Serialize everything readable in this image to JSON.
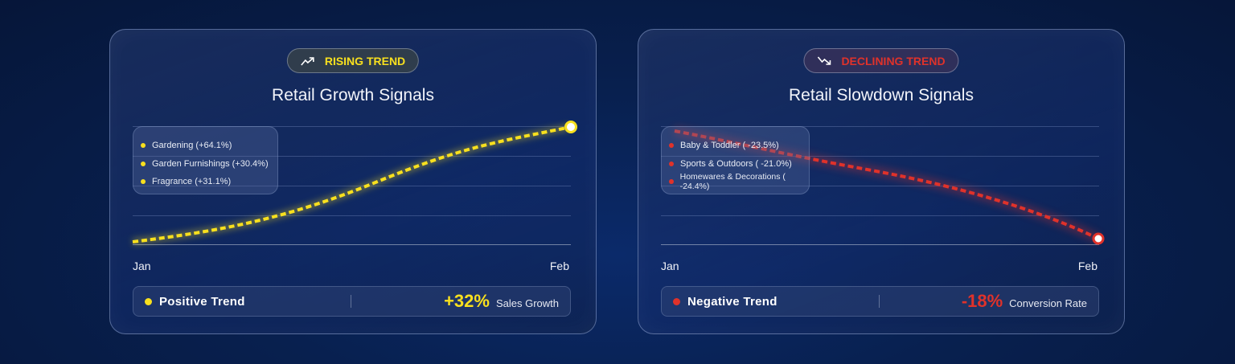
{
  "colors": {
    "rising": "#f8e01e",
    "declining": "#e0322a"
  },
  "cards": [
    {
      "badge": {
        "icon": "trending-up-icon",
        "label": "RISING TREND"
      },
      "title": "Retail Growth Signals",
      "legend": [
        "Gardening (+64.1%)",
        "Garden Furnishings (+30.4%)",
        "Fragrance (+31.1%)"
      ],
      "summary": {
        "label": "Positive Trend",
        "value": "+32%",
        "metric": "Sales Growth"
      }
    },
    {
      "badge": {
        "icon": "trending-down-icon",
        "label": "DECLINING TREND"
      },
      "title": "Retail Slowdown Signals",
      "legend": [
        "Baby & Toddler ( -23.5%)",
        "Sports & Outdoors ( -21.0%)",
        "Homewares & Decorations ( -24.4%)"
      ],
      "summary": {
        "label": "Negative Trend",
        "value": "-18%",
        "metric": "Conversion Rate"
      }
    }
  ],
  "chart_data": [
    {
      "type": "line",
      "title": "Retail Growth Signals",
      "categories": [
        "Jan",
        "Feb"
      ],
      "trend": "rising",
      "line_style": "dashed",
      "grid": true,
      "color": "#f8e01e"
    },
    {
      "type": "line",
      "title": "Retail Slowdown Signals",
      "categories": [
        "Jan",
        "Feb"
      ],
      "trend": "declining",
      "line_style": "dashed",
      "grid": true,
      "color": "#e0322a"
    }
  ]
}
